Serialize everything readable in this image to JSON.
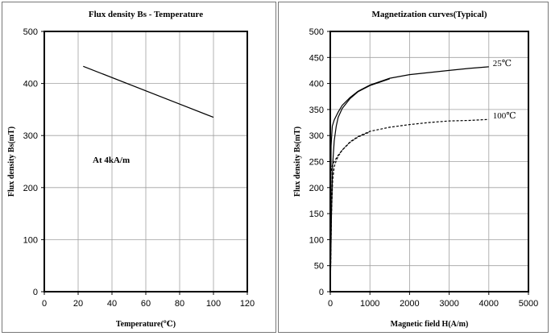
{
  "chart_data": [
    {
      "type": "line",
      "title": "Flux density Bs - Temperature",
      "xlabel": "Temperature(℃)",
      "ylabel": "Flux density Bs(mT)",
      "xlim": [
        0,
        120
      ],
      "ylim": [
        0,
        500
      ],
      "xticks": [
        0,
        20,
        40,
        60,
        80,
        100,
        120
      ],
      "yticks": [
        0,
        100,
        200,
        300,
        400,
        500
      ],
      "grid": true,
      "annotation": "At 4kA/m",
      "series": [
        {
          "name": "Bs",
          "style": "solid",
          "x": [
            23,
            100
          ],
          "y": [
            433,
            335
          ]
        }
      ]
    },
    {
      "type": "line",
      "title": "Magnetization curves(Typical)",
      "xlabel": "Magnetic field H(A/m)",
      "ylabel": "Flux density Bs(mT)",
      "xlim": [
        0,
        5000
      ],
      "ylim": [
        0,
        500
      ],
      "xticks": [
        0,
        1000,
        2000,
        3000,
        4000,
        5000
      ],
      "yticks": [
        0,
        50,
        100,
        150,
        200,
        250,
        300,
        350,
        400,
        450,
        500
      ],
      "grid": true,
      "series": [
        {
          "name": "25℃ a",
          "label": "25℃",
          "style": "solid",
          "x": [
            0,
            20,
            50,
            100,
            200,
            300,
            500,
            700,
            1000,
            1500,
            2000,
            2500,
            3000,
            3500,
            4000
          ],
          "y": [
            0,
            280,
            318,
            330,
            345,
            358,
            373,
            385,
            397,
            410,
            417,
            421,
            425,
            429,
            432
          ]
        },
        {
          "name": "25℃ b",
          "label": "",
          "style": "solid",
          "x": [
            0,
            30,
            60,
            100,
            150,
            200,
            300,
            500,
            700,
            1000,
            1500
          ],
          "y": [
            0,
            150,
            245,
            290,
            318,
            335,
            352,
            371,
            384,
            396,
            409
          ]
        },
        {
          "name": "100℃ a",
          "label": "100℃",
          "style": "dashed",
          "x": [
            0,
            20,
            50,
            100,
            200,
            300,
            500,
            700,
            1000,
            1500,
            2000,
            2500,
            3000,
            3500,
            4000
          ],
          "y": [
            0,
            230,
            242,
            250,
            262,
            272,
            288,
            298,
            308,
            316,
            321,
            325,
            328,
            329,
            331
          ]
        },
        {
          "name": "100℃ b",
          "label": "",
          "style": "dashed",
          "x": [
            0,
            30,
            60,
            100,
            150,
            200,
            300,
            500,
            700,
            1000
          ],
          "y": [
            0,
            150,
            215,
            240,
            252,
            260,
            272,
            287,
            297,
            307
          ]
        }
      ]
    }
  ]
}
